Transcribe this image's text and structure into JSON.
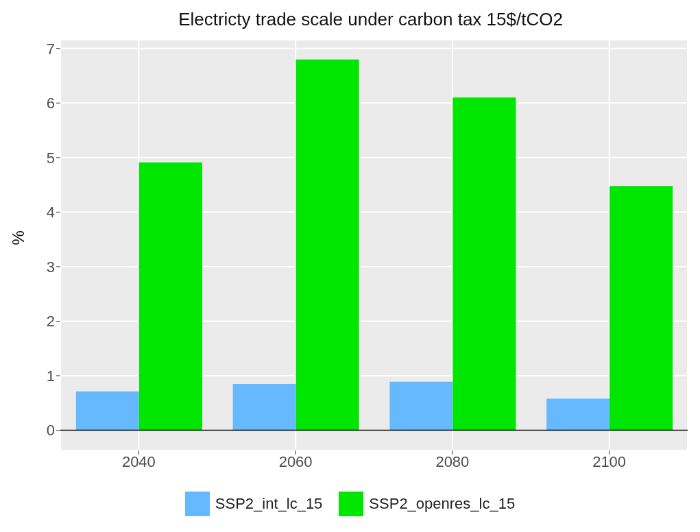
{
  "chart_data": {
    "type": "bar",
    "title": "Electricty trade scale under carbon tax 15$/tCO2",
    "ylabel": "%",
    "categories": [
      "2040",
      "2060",
      "2080",
      "2100"
    ],
    "series": [
      {
        "name": "SSP2_int_lc_15",
        "color": "#66b8ff",
        "values": [
          0.71,
          0.85,
          0.89,
          0.58
        ]
      },
      {
        "name": "SSP2_openres_lc_15",
        "color": "#00e600",
        "values": [
          4.91,
          6.8,
          6.1,
          4.48
        ]
      }
    ],
    "ylim": [
      -0.37,
      7.16
    ],
    "yticks": [
      0,
      1,
      2,
      3,
      4,
      5,
      6,
      7
    ],
    "grid": true,
    "legend": "bottom",
    "ref_lines": [
      {
        "axis": "y",
        "value": 0,
        "color": "#000000"
      }
    ]
  }
}
